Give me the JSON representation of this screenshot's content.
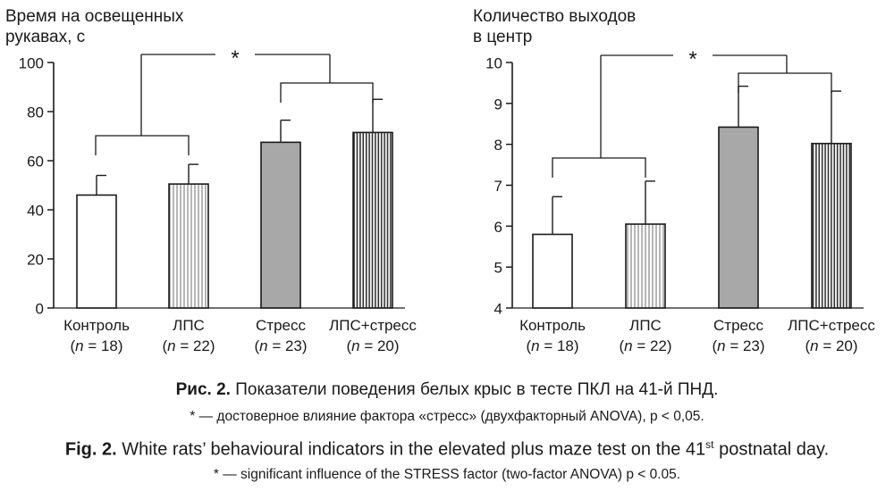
{
  "chart_data": [
    {
      "type": "bar",
      "ylabel": "Время на освещенных рукавах, с",
      "ylim": [
        0,
        100
      ],
      "yticks": [
        0,
        20,
        40,
        60,
        80,
        100
      ],
      "categories": [
        "Контроль",
        "ЛПС",
        "Стресс",
        "ЛПС+стресс"
      ],
      "n_labels": [
        "(n = 18)",
        "(n = 22)",
        "(n = 23)",
        "(n = 20)"
      ],
      "values": [
        46,
        50.5,
        67.5,
        71.5
      ],
      "errors": [
        8,
        8,
        9,
        13.5
      ],
      "significance_marker": "*",
      "bar_styles": [
        "white",
        "vertical-hatch",
        "gray",
        "dark-vertical-hatch"
      ]
    },
    {
      "type": "bar",
      "ylabel": "Количество выходов в центр",
      "ylim": [
        4,
        10
      ],
      "yticks": [
        4,
        5,
        6,
        7,
        8,
        9,
        10
      ],
      "categories": [
        "Контроль",
        "ЛПС",
        "Стресс",
        "ЛПС+стресс"
      ],
      "n_labels": [
        "(n = 18)",
        "(n = 22)",
        "(n = 23)",
        "(n = 20)"
      ],
      "values": [
        5.8,
        6.05,
        8.42,
        8.02
      ],
      "errors": [
        0.92,
        1.05,
        1.0,
        1.28
      ],
      "significance_marker": "*",
      "bar_styles": [
        "white",
        "vertical-hatch",
        "gray",
        "dark-vertical-hatch"
      ]
    }
  ],
  "labels": {
    "left_ylabel_1": "Время на освещенных",
    "left_ylabel_2": "рукавах, с",
    "right_ylabel_1": "Количество выходов",
    "right_ylabel_2": "в центр"
  },
  "captions": {
    "ru_prefix": "Рис. 2.",
    "ru_text": " Показатели поведения белых крыс в тесте ПКЛ на 41-й ПНД.",
    "ru_note": "* — достоверное влияние фактора «стресс» (двухфакторный ANOVA), p < 0,05.",
    "en_prefix": "Fig. 2.",
    "en_text_1": " White rats’ behavioural indicators in the elevated plus maze test on the 41",
    "en_sup": "st",
    "en_text_2": " postnatal day.",
    "en_note": "* — significant influence of the STRESS factor (two-factor ANOVA) p < 0.05."
  },
  "colors": {
    "ink": "#1a1a1a",
    "gray_fill": "#a8a8a8",
    "hatch": "#808080"
  }
}
